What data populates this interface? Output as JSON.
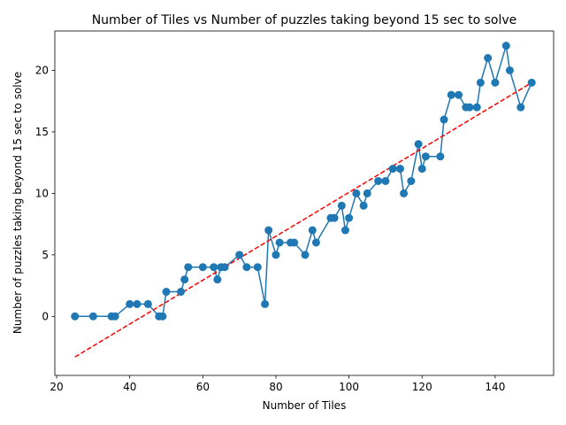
{
  "chart_data": {
    "type": "line",
    "title": "Number of Tiles vs Number of puzzles taking beyond 15 sec to solve",
    "xlabel": "Number of Tiles",
    "ylabel": "Number of puzzles taking beyond 15 sec to solve",
    "xlim": [
      19.5,
      156
    ],
    "ylim": [
      -4.8,
      23.2
    ],
    "xticks": [
      20,
      40,
      60,
      80,
      100,
      120,
      140
    ],
    "yticks": [
      0,
      5,
      10,
      15,
      20
    ],
    "grid": false,
    "series": [
      {
        "style": "line-with-markers",
        "color": "#1f77b4",
        "x": [
          25,
          30,
          35,
          36,
          40,
          42,
          45,
          48,
          49,
          50,
          54,
          55,
          56,
          60,
          63,
          64,
          65,
          66,
          70,
          72,
          75,
          77,
          78,
          80,
          81,
          84,
          85,
          88,
          90,
          91,
          95,
          96,
          98,
          99,
          100,
          102,
          104,
          105,
          108,
          110,
          112,
          114,
          115,
          117,
          119,
          120,
          121,
          125,
          126,
          128,
          130,
          132,
          133,
          135,
          136,
          138,
          140,
          143,
          144,
          147,
          150
        ],
        "y": [
          0,
          0,
          0,
          0,
          1,
          1,
          1,
          0,
          0,
          2,
          2,
          3,
          4,
          4,
          4,
          3,
          4,
          4,
          5,
          4,
          4,
          1,
          7,
          5,
          6,
          6,
          6,
          5,
          7,
          6,
          8,
          8,
          9,
          7,
          8,
          10,
          9,
          10,
          11,
          11,
          12,
          12,
          10,
          11,
          14,
          12,
          13,
          13,
          16,
          18,
          18,
          17,
          17,
          17,
          19,
          21,
          19,
          22,
          20,
          17,
          19
        ]
      },
      {
        "style": "dashed-trend",
        "color": "#ff0000",
        "x": [
          25,
          150
        ],
        "y": [
          -3.3,
          19.0
        ]
      }
    ]
  }
}
